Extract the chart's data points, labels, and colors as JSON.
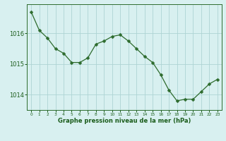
{
  "x": [
    0,
    1,
    2,
    3,
    4,
    5,
    6,
    7,
    8,
    9,
    10,
    11,
    12,
    13,
    14,
    15,
    16,
    17,
    18,
    19,
    20,
    21,
    22,
    23
  ],
  "y": [
    1016.7,
    1016.1,
    1015.85,
    1015.5,
    1015.35,
    1015.05,
    1015.05,
    1015.2,
    1015.65,
    1015.75,
    1015.9,
    1015.95,
    1015.75,
    1015.5,
    1015.25,
    1015.05,
    1014.65,
    1014.15,
    1013.8,
    1013.85,
    1013.85,
    1014.1,
    1014.35,
    1014.5
  ],
  "line_color": "#2d6b2d",
  "marker": "D",
  "marker_size": 2.5,
  "background_color": "#d8f0f0",
  "grid_color": "#aed4d4",
  "xlabel": "Graphe pression niveau de la mer (hPa)",
  "tick_color": "#1a5c1a",
  "yticks": [
    1014,
    1015,
    1016
  ],
  "ylim": [
    1013.5,
    1016.95
  ],
  "xlim": [
    -0.5,
    23.5
  ],
  "border_color": "#2d6b2d",
  "figsize": [
    3.2,
    2.0
  ],
  "dpi": 100
}
